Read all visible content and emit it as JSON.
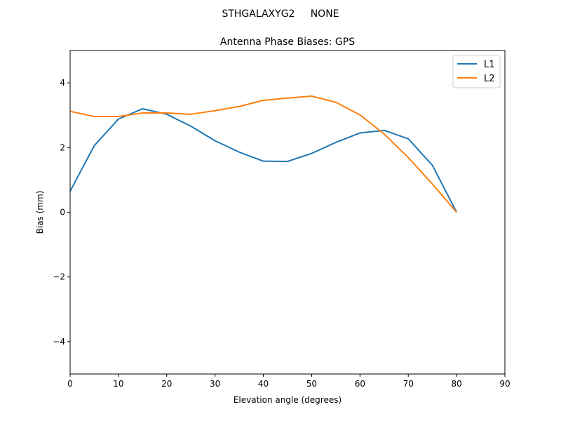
{
  "chart_data": {
    "type": "line",
    "suptitle": "STHGALAXYG2     NONE",
    "title": "Antenna Phase Biases: GPS",
    "xlabel": "Elevation angle (degrees)",
    "ylabel": "Bias (mm)",
    "xlim": [
      0,
      90
    ],
    "ylim": [
      -5,
      5
    ],
    "xticks": [
      0,
      10,
      20,
      30,
      40,
      50,
      60,
      70,
      80,
      90
    ],
    "yticks": [
      -4,
      -2,
      0,
      2,
      4
    ],
    "ytick_labels": [
      "−4",
      "−2",
      "0",
      "2",
      "4"
    ],
    "grid": false,
    "legend_position": "top-right",
    "x": [
      0,
      5,
      10,
      15,
      20,
      25,
      30,
      35,
      40,
      45,
      50,
      55,
      60,
      65,
      70,
      75,
      80
    ],
    "series": [
      {
        "name": "L1",
        "color": "#1f77b4",
        "values": [
          0.65,
          2.06,
          2.88,
          3.2,
          3.03,
          2.66,
          2.21,
          1.86,
          1.58,
          1.57,
          1.82,
          2.16,
          2.45,
          2.53,
          2.27,
          1.45,
          0.0
        ]
      },
      {
        "name": "L2",
        "color": "#ff7f0e",
        "values": [
          3.12,
          2.96,
          2.96,
          3.07,
          3.07,
          3.03,
          3.14,
          3.27,
          3.46,
          3.53,
          3.59,
          3.4,
          3.01,
          2.42,
          1.69,
          0.87,
          0.0
        ]
      }
    ]
  }
}
